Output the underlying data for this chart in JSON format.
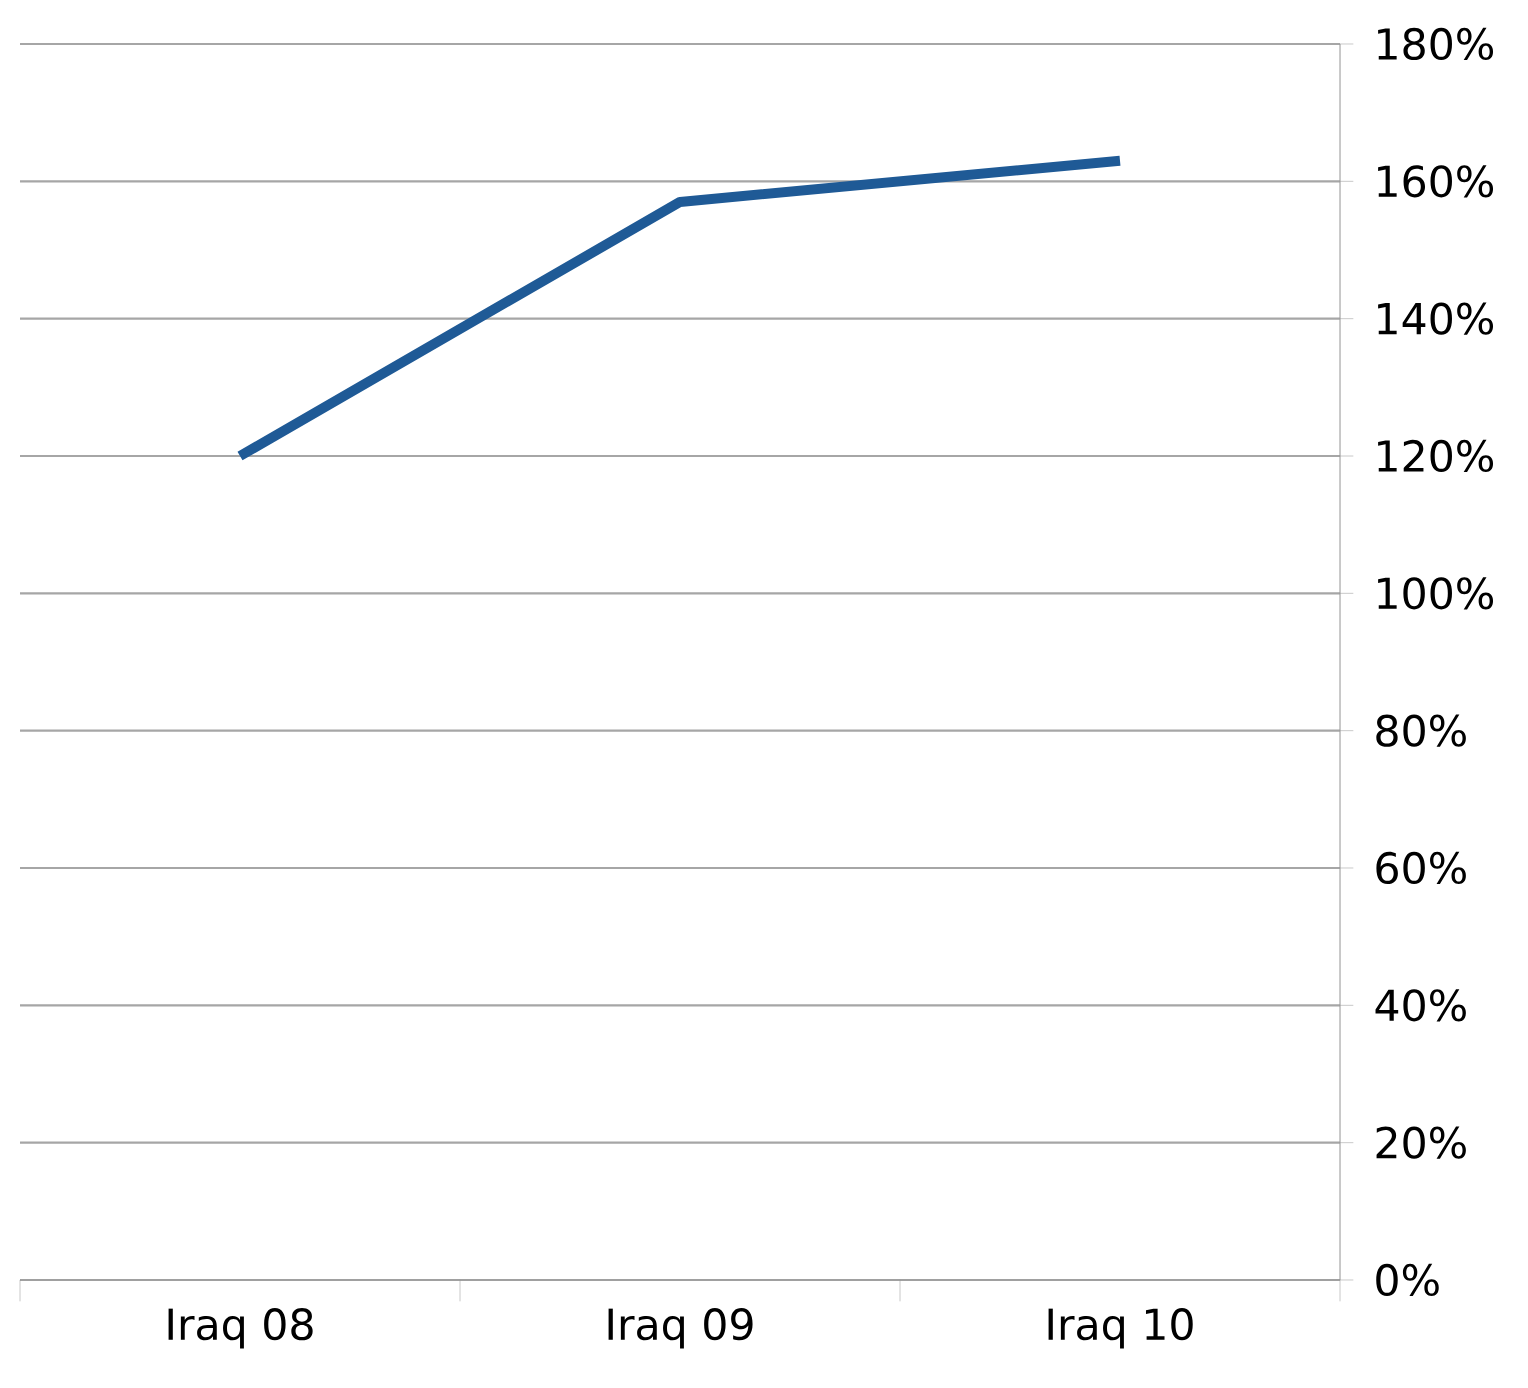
{
  "chart_data": {
    "type": "line",
    "categories": [
      "Iraq 08",
      "Iraq 09",
      "Iraq 10"
    ],
    "series": [
      {
        "color": "#1f5a96",
        "values": [
          120,
          157,
          163
        ]
      }
    ],
    "ylim": [
      0,
      180
    ],
    "yticks": [
      {
        "value": 0,
        "label": "0%"
      },
      {
        "value": 20,
        "label": "20%"
      },
      {
        "value": 40,
        "label": "40%"
      },
      {
        "value": 60,
        "label": "60%"
      },
      {
        "value": 80,
        "label": "80%"
      },
      {
        "value": 100,
        "label": "100%"
      },
      {
        "value": 120,
        "label": "120%"
      },
      {
        "value": 140,
        "label": "140%"
      },
      {
        "value": 160,
        "label": "160%"
      },
      {
        "value": 180,
        "label": "180%"
      }
    ],
    "grid": "y",
    "marker": "none",
    "line_style": "solid"
  }
}
